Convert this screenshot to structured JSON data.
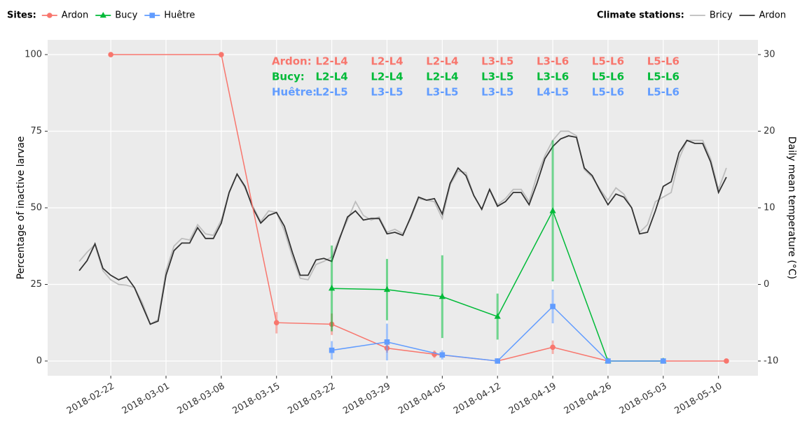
{
  "chart_data": {
    "type": "line",
    "legend_titles": [
      "Sites:",
      "Climate stations:"
    ],
    "ylabel": "Percentage of inactive larvae",
    "y2label": "Daily mean temperature (°C)",
    "xlim": [
      "2018-02-14",
      "2018-05-15"
    ],
    "xticks": [
      "2018-02-22",
      "2018-03-01",
      "2018-03-08",
      "2018-03-15",
      "2018-03-22",
      "2018-03-29",
      "2018-04-05",
      "2018-04-12",
      "2018-04-19",
      "2018-04-26",
      "2018-05-03",
      "2018-05-10"
    ],
    "ylim": [
      -4.8,
      104.8
    ],
    "yticks": [
      0,
      25,
      50,
      75,
      100
    ],
    "y2lim": [
      -11.92,
      31.92
    ],
    "y2ticks": [
      -10,
      0,
      10,
      20,
      30
    ],
    "grid": true,
    "series": [
      {
        "name": "Bricy",
        "group": "climate",
        "axis": "y2",
        "color": "#bdbdbd",
        "x": [
          "2018-02-18",
          "2018-02-19",
          "2018-02-20",
          "2018-02-21",
          "2018-02-22",
          "2018-02-23",
          "2018-02-24",
          "2018-02-25",
          "2018-02-26",
          "2018-02-27",
          "2018-02-28",
          "2018-03-01",
          "2018-03-02",
          "2018-03-03",
          "2018-03-04",
          "2018-03-05",
          "2018-03-06",
          "2018-03-07",
          "2018-03-08",
          "2018-03-09",
          "2018-03-10",
          "2018-03-11",
          "2018-03-12",
          "2018-03-13",
          "2018-03-14",
          "2018-03-15",
          "2018-03-16",
          "2018-03-17",
          "2018-03-18",
          "2018-03-19",
          "2018-03-20",
          "2018-03-21",
          "2018-03-22",
          "2018-03-23",
          "2018-03-24",
          "2018-03-25",
          "2018-03-26",
          "2018-03-27",
          "2018-03-28",
          "2018-03-29",
          "2018-03-30",
          "2018-03-31",
          "2018-04-01",
          "2018-04-02",
          "2018-04-03",
          "2018-04-04",
          "2018-04-05",
          "2018-04-06",
          "2018-04-07",
          "2018-04-08",
          "2018-04-09",
          "2018-04-10",
          "2018-04-11",
          "2018-04-12",
          "2018-04-13",
          "2018-04-14",
          "2018-04-15",
          "2018-04-16",
          "2018-04-17",
          "2018-04-18",
          "2018-04-19",
          "2018-04-20",
          "2018-04-21",
          "2018-04-22",
          "2018-04-23",
          "2018-04-24",
          "2018-04-25",
          "2018-04-26",
          "2018-04-27",
          "2018-04-28",
          "2018-04-29",
          "2018-04-30",
          "2018-05-01",
          "2018-05-02",
          "2018-05-03",
          "2018-05-04",
          "2018-05-05",
          "2018-05-06",
          "2018-05-07",
          "2018-05-08",
          "2018-05-09",
          "2018-05-10",
          "2018-05-11"
        ],
        "values": [
          3.0,
          4.2,
          5.2,
          1.8,
          0.6,
          0.0,
          -0.1,
          -0.4,
          -2.4,
          -5.2,
          -4.6,
          1.8,
          5.0,
          6.0,
          5.8,
          7.8,
          6.6,
          6.4,
          8.4,
          12.0,
          14.4,
          12.6,
          10.2,
          8.2,
          9.6,
          9.4,
          7.0,
          3.6,
          0.8,
          0.6,
          2.6,
          3.0,
          3.6,
          6.2,
          8.4,
          10.8,
          9.0,
          8.4,
          8.8,
          6.8,
          7.2,
          6.6,
          8.6,
          11.2,
          11.0,
          10.8,
          8.6,
          13.0,
          14.8,
          14.6,
          11.6,
          9.8,
          12.4,
          10.4,
          11.2,
          12.4,
          12.4,
          10.8,
          14.2,
          16.8,
          18.8,
          20.0,
          20.0,
          19.4,
          15.0,
          14.0,
          12.4,
          11.0,
          12.6,
          11.8,
          10.0,
          6.8,
          7.8,
          10.8,
          11.4,
          12.0,
          16.4,
          18.8,
          18.8,
          18.8,
          16.4,
          12.4,
          15.2
        ]
      },
      {
        "name": "Ardon",
        "group": "climate",
        "axis": "y2",
        "color": "#333333",
        "x": [
          "2018-02-18",
          "2018-02-19",
          "2018-02-20",
          "2018-02-21",
          "2018-02-22",
          "2018-02-23",
          "2018-02-24",
          "2018-02-25",
          "2018-02-26",
          "2018-02-27",
          "2018-02-28",
          "2018-03-01",
          "2018-03-02",
          "2018-03-03",
          "2018-03-04",
          "2018-03-05",
          "2018-03-06",
          "2018-03-07",
          "2018-03-08",
          "2018-03-09",
          "2018-03-10",
          "2018-03-11",
          "2018-03-12",
          "2018-03-13",
          "2018-03-14",
          "2018-03-15",
          "2018-03-16",
          "2018-03-17",
          "2018-03-18",
          "2018-03-19",
          "2018-03-20",
          "2018-03-21",
          "2018-03-22",
          "2018-03-23",
          "2018-03-24",
          "2018-03-25",
          "2018-03-26",
          "2018-03-27",
          "2018-03-28",
          "2018-03-29",
          "2018-03-30",
          "2018-03-31",
          "2018-04-01",
          "2018-04-02",
          "2018-04-03",
          "2018-04-04",
          "2018-04-05",
          "2018-04-06",
          "2018-04-07",
          "2018-04-08",
          "2018-04-09",
          "2018-04-10",
          "2018-04-11",
          "2018-04-12",
          "2018-04-13",
          "2018-04-14",
          "2018-04-15",
          "2018-04-16",
          "2018-04-17",
          "2018-04-18",
          "2018-04-19",
          "2018-04-20",
          "2018-04-21",
          "2018-04-22",
          "2018-04-23",
          "2018-04-24",
          "2018-04-25",
          "2018-04-26",
          "2018-04-27",
          "2018-04-28",
          "2018-04-29",
          "2018-04-30",
          "2018-05-01",
          "2018-05-02",
          "2018-05-03",
          "2018-05-04",
          "2018-05-05",
          "2018-05-06",
          "2018-05-07",
          "2018-05-08",
          "2018-05-09",
          "2018-05-10",
          "2018-05-11"
        ],
        "values": [
          1.8,
          3.1,
          5.3,
          2.1,
          1.2,
          0.6,
          1.0,
          -0.4,
          -2.8,
          -5.2,
          -4.8,
          1.2,
          4.4,
          5.4,
          5.4,
          7.4,
          6.0,
          6.0,
          8.0,
          12.0,
          14.4,
          12.8,
          10.0,
          8.0,
          9.0,
          9.4,
          7.6,
          4.2,
          1.2,
          1.2,
          3.2,
          3.4,
          3.0,
          6.0,
          8.8,
          9.6,
          8.4,
          8.6,
          8.6,
          6.6,
          6.8,
          6.4,
          8.8,
          11.4,
          11.0,
          11.2,
          9.2,
          13.2,
          15.2,
          14.2,
          11.6,
          9.8,
          12.4,
          10.2,
          10.8,
          12.0,
          12.0,
          10.4,
          13.2,
          16.4,
          18.0,
          19.0,
          19.4,
          19.2,
          15.2,
          14.2,
          12.2,
          10.4,
          11.8,
          11.4,
          10.0,
          6.6,
          6.8,
          9.6,
          12.8,
          13.4,
          17.2,
          18.8,
          18.4,
          18.4,
          16.0,
          12.0,
          14.0
        ]
      },
      {
        "name": "Ardon",
        "group": "sites",
        "marker": "circle",
        "color": "#f8766d",
        "x": [
          "2018-02-22",
          "2018-03-08",
          "2018-03-15",
          "2018-03-22",
          "2018-03-29",
          "2018-04-04",
          "2018-04-12",
          "2018-04-19",
          "2018-04-26",
          "2018-05-03",
          "2018-05-11"
        ],
        "values": [
          100,
          100,
          12.5,
          12,
          4.2,
          2.2,
          0,
          4.5,
          0,
          0,
          0
        ],
        "errors": [
          null,
          null,
          3.5,
          3.5,
          1.5,
          1.2,
          null,
          2.2,
          null,
          null,
          null
        ]
      },
      {
        "name": "Bucy",
        "group": "sites",
        "marker": "triangle",
        "color": "#00ba38",
        "x": [
          "2018-03-22",
          "2018-03-29",
          "2018-04-05",
          "2018-04-12",
          "2018-04-19",
          "2018-04-26",
          "2018-05-03"
        ],
        "values": [
          23.7,
          23.3,
          21,
          14.5,
          49,
          0,
          0
        ],
        "errors": [
          14,
          10,
          13.5,
          7.5,
          23,
          null,
          null
        ]
      },
      {
        "name": "Huêtre",
        "group": "sites",
        "marker": "square",
        "color": "#619cff",
        "x": [
          "2018-03-22",
          "2018-03-29",
          "2018-04-05",
          "2018-04-12",
          "2018-04-19",
          "2018-04-26",
          "2018-05-03"
        ],
        "values": [
          3.5,
          6.2,
          2,
          0,
          17.8,
          0,
          0
        ],
        "errors": [
          3,
          6,
          1.5,
          null,
          5.5,
          null,
          null
        ]
      }
    ],
    "stages": {
      "x": [
        "2018-03-22",
        "2018-03-29",
        "2018-04-05",
        "2018-04-12",
        "2018-04-19",
        "2018-04-26",
        "2018-05-03"
      ],
      "rows": [
        {
          "label": "Ardon:",
          "color": "#f8766d",
          "values": [
            "L2-L4",
            "L2-L4",
            "L2-L4",
            "L3-L5",
            "L3-L6",
            "L5-L6",
            "L5-L6"
          ]
        },
        {
          "label": "Bucy:",
          "color": "#00ba38",
          "values": [
            "L2-L4",
            "L2-L4",
            "L2-L4",
            "L3-L5",
            "L3-L6",
            "L5-L6",
            "L5-L6"
          ]
        },
        {
          "label": "Huêtre:",
          "color": "#619cff",
          "values": [
            "L2-L5",
            "L3-L5",
            "L3-L5",
            "L3-L5",
            "L4-L5",
            "L5-L6",
            "L5-L6"
          ]
        }
      ]
    }
  }
}
